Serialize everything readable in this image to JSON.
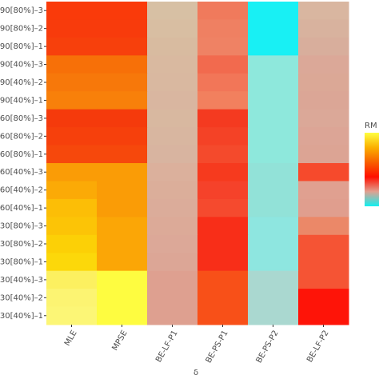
{
  "chart_data": {
    "type": "heatmap",
    "x_label": "δ",
    "legend_title": "RM",
    "categories": [
      "MLE",
      "MPSE",
      "BE-LF-P1",
      "BE-PS-P1",
      "BE-PS-P2",
      "BE-LF-P2"
    ],
    "rows": [
      "90[80%]–3",
      "90[80%]–2",
      "90[80%]–1",
      "90[40%]–3",
      "90[40%]–2",
      "90[40%]–1",
      "60[80%]–3",
      "60[80%]–2",
      "60[80%]–1",
      "60[40%]–3",
      "60[40%]–2",
      "60[40%]–1",
      "30[80%]–3",
      "30[80%]–2",
      "30[80%]–1",
      "30[40%]–3",
      "30[40%]–2",
      "30[40%]–1"
    ],
    "cell_colors": [
      [
        "#fa3a0a",
        "#fa3a0a",
        "#d7c0a4",
        "#f07a5c",
        "#18f0f4",
        "#d9b6a0"
      ],
      [
        "#f83b0c",
        "#f83b0c",
        "#d8bea2",
        "#ef8062",
        "#18f0f4",
        "#d8b29e"
      ],
      [
        "#f7400c",
        "#f7400c",
        "#d8bba0",
        "#ef8264",
        "#18f0f4",
        "#d8ae9c"
      ],
      [
        "#f77008",
        "#f77008",
        "#d9b9a0",
        "#f26a4e",
        "#8ee8dc",
        "#dba898"
      ],
      [
        "#f7780a",
        "#f7780a",
        "#d9b8a0",
        "#f27658",
        "#8ee8dc",
        "#dba896"
      ],
      [
        "#f8800a",
        "#f8800a",
        "#d9b6a0",
        "#f2805e",
        "#8ee8dc",
        "#dba696"
      ],
      [
        "#f53a0c",
        "#f53a0c",
        "#d8b8a0",
        "#f43a20",
        "#8ee8dc",
        "#dba898"
      ],
      [
        "#f6400c",
        "#f6400c",
        "#d8b6a0",
        "#f44226",
        "#8ee8dc",
        "#dca596"
      ],
      [
        "#f6480c",
        "#f6480c",
        "#d8b4a0",
        "#f44a2c",
        "#8ee8dc",
        "#dca494"
      ],
      [
        "#fa9c06",
        "#fa9c06",
        "#dbb09c",
        "#f63a1e",
        "#92e2d8",
        "#f64a2c"
      ],
      [
        "#fbaa06",
        "#fa9c06",
        "#dbae9a",
        "#f5422a",
        "#92e2d8",
        "#e0a090"
      ],
      [
        "#fcbe06",
        "#fa9c06",
        "#dbac9a",
        "#f54a2e",
        "#92e2d8",
        "#e09e8e"
      ],
      [
        "#fcc406",
        "#fba606",
        "#dcaa98",
        "#f82e18",
        "#8ee6e0",
        "#eb8868"
      ],
      [
        "#fcd006",
        "#fba606",
        "#dca898",
        "#f82e18",
        "#8ee6e0",
        "#f55434"
      ],
      [
        "#fcd80a",
        "#fba606",
        "#dca696",
        "#f82e18",
        "#8ee6e0",
        "#f55434"
      ],
      [
        "#fcf060",
        "#fefc40",
        "#dea090",
        "#f85018",
        "#aad8d0",
        "#f55434"
      ],
      [
        "#fcf472",
        "#fefc40",
        "#dea090",
        "#f85018",
        "#aad8d0",
        "#fe1408"
      ],
      [
        "#fcf676",
        "#fefc40",
        "#dea090",
        "#f85018",
        "#aad8d0",
        "#fe1408"
      ]
    ],
    "legend_colors": [
      "#ffff40",
      "#fbb000",
      "#f86000",
      "#ff1000",
      "#e0a090",
      "#10f0f0"
    ]
  }
}
